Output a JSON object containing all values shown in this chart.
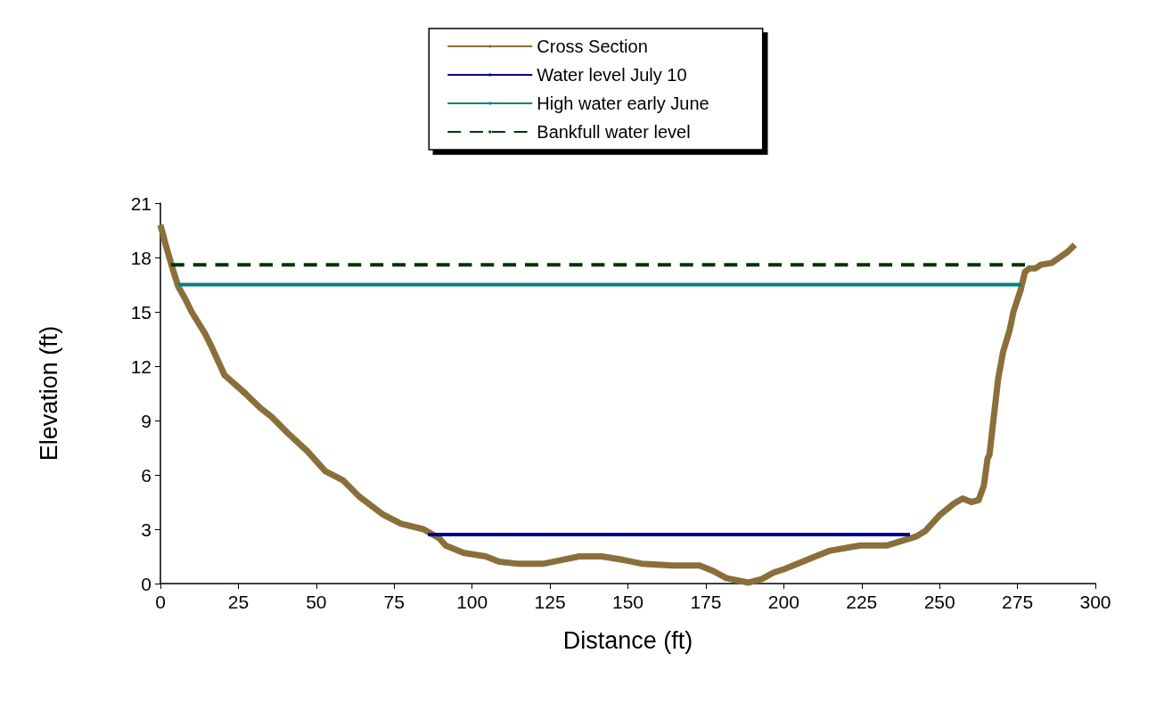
{
  "chart_data": {
    "type": "line",
    "xlabel": "Distance (ft)",
    "ylabel": "Elevation (ft)",
    "xlim": [
      0,
      300
    ],
    "xticks": [
      0,
      25,
      50,
      75,
      100,
      125,
      150,
      175,
      200,
      225,
      250,
      275,
      300
    ],
    "ylim": [
      0,
      21
    ],
    "yticks": [
      0,
      3,
      6,
      9,
      12,
      15,
      18,
      21
    ],
    "grid": false,
    "legend": "top",
    "marker": "none",
    "series": [
      {
        "name": "Cross Section",
        "color": "#8b6f3a",
        "line_style": "solid",
        "x": [
          0,
          1.7,
          3.7,
          5.7,
          8,
          10,
          14.3,
          16.6,
          20.6,
          27.2,
          32,
          35.7,
          40.9,
          47.2,
          52.9,
          58.6,
          63.8,
          71.5,
          77.2,
          84.4,
          89.5,
          91.5,
          97.2,
          104.4,
          108.7,
          114.4,
          123,
          128.7,
          134.4,
          141.6,
          148.7,
          154.4,
          164.4,
          173,
          177.3,
          181.6,
          188.7,
          193,
          196.7,
          200.2,
          211.6,
          214.5,
          224.5,
          233,
          238.8,
          242.5,
          245.4,
          250.2,
          254.5,
          257.4,
          260.2,
          262.5,
          264.2,
          265.4,
          266,
          268,
          268.8,
          270.4,
          272.5,
          273.7,
          276,
          277.4,
          278.8,
          280.8,
          282.5,
          286,
          291,
          293.4
        ],
        "values": [
          19.8,
          18.7,
          17.5,
          16.4,
          15.7,
          15.0,
          13.8,
          13.0,
          11.5,
          10.5,
          9.7,
          9.2,
          8.3,
          7.3,
          6.2,
          5.7,
          4.8,
          3.8,
          3.3,
          3.0,
          2.5,
          2.1,
          1.7,
          1.5,
          1.2,
          1.1,
          1.1,
          1.3,
          1.5,
          1.5,
          1.3,
          1.1,
          1.0,
          1.0,
          0.7,
          0.3,
          0.05,
          0.25,
          0.6,
          0.8,
          1.6,
          1.8,
          2.1,
          2.1,
          2.4,
          2.6,
          2.9,
          3.8,
          4.4,
          4.7,
          4.5,
          4.6,
          5.4,
          6.9,
          7.1,
          10.1,
          11.3,
          12.8,
          14.0,
          15.0,
          16.2,
          17.2,
          17.4,
          17.4,
          17.6,
          17.7,
          18.3,
          18.7
        ]
      },
      {
        "name": "Water level July 10",
        "color": "#000099",
        "line_style": "solid",
        "x": [
          85.8,
          240.5
        ],
        "values": [
          2.7,
          2.7
        ]
      },
      {
        "name": "High water early June",
        "color": "#008080",
        "line_style": "solid",
        "x": [
          5.7,
          276.2
        ],
        "values": [
          16.5,
          16.5
        ]
      },
      {
        "name": "Bankfull water level",
        "color": "#003300",
        "line_style": "dashed",
        "x": [
          3.4,
          277.4
        ],
        "values": [
          17.6,
          17.6
        ]
      }
    ]
  }
}
